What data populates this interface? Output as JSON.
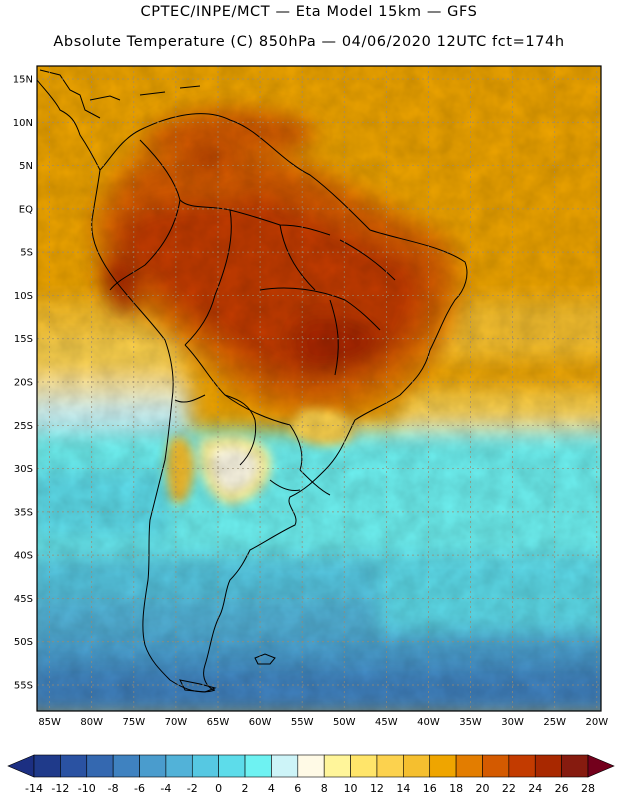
{
  "title": {
    "line1": "CPTEC/INPE/MCT —  Eta Model 15km — GFS",
    "line2": "Absolute Temperature (C) 850hPa — 04/06/2020 12UTC fct=174h"
  },
  "map": {
    "lat_labels": [
      "15N",
      "10N",
      "5N",
      "EQ",
      "5S",
      "10S",
      "15S",
      "20S",
      "25S",
      "30S",
      "35S",
      "40S",
      "45S",
      "50S",
      "55S"
    ],
    "lon_labels": [
      "85W",
      "80W",
      "75W",
      "70W",
      "65W",
      "60W",
      "55W",
      "50W",
      "45W",
      "40W",
      "35W",
      "30W",
      "25W",
      "20W"
    ],
    "lat_values": [
      15,
      10,
      5,
      0,
      -5,
      -10,
      -15,
      -20,
      -25,
      -30,
      -35,
      -40,
      -45,
      -50,
      -55
    ],
    "lon_values": [
      -85,
      -80,
      -75,
      -70,
      -65,
      -60,
      -55,
      -50,
      -45,
      -40,
      -35,
      -30,
      -25,
      -20
    ],
    "lat_range": [
      -58,
      16.5
    ],
    "lon_range": [
      -86.5,
      -19.5
    ]
  },
  "colorbar": {
    "labels": [
      "-14",
      "-12",
      "-10",
      "-8",
      "-6",
      "-4",
      "-2",
      "0",
      "2",
      "4",
      "6",
      "8",
      "10",
      "12",
      "14",
      "16",
      "18",
      "20",
      "22",
      "24",
      "26",
      "28"
    ],
    "colors": [
      "#1f3a8a",
      "#2a52a2",
      "#3468b0",
      "#3f82c0",
      "#4a9ccd",
      "#52b2d8",
      "#56c8e2",
      "#5ddcea",
      "#6ef2f2",
      "#cdf4f8",
      "#fffae6",
      "#fff59a",
      "#ffe56a",
      "#fcd24e",
      "#f5bf2f",
      "#efa500",
      "#e37d00",
      "#d45a00",
      "#c33b00",
      "#a82800",
      "#861b0f"
    ],
    "low_arrow_color": "#1c2f82",
    "high_arrow_color": "#73001c"
  }
}
